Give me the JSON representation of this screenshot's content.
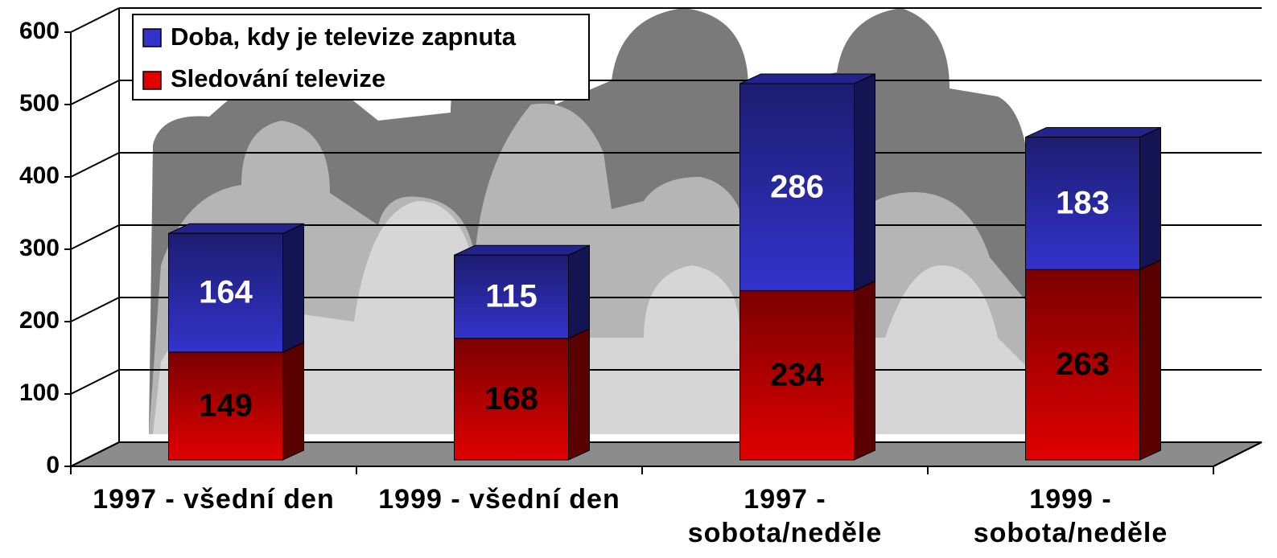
{
  "chart_data": {
    "type": "bar",
    "categories": [
      "1997 - všední den",
      "1999 - všední den",
      "1997 - sobota/neděle",
      "1999 - sobota/neděle"
    ],
    "series": [
      {
        "name": "Doba, kdy je televize zapnuta",
        "color": "#3333cc",
        "values": [
          164,
          115,
          286,
          183
        ]
      },
      {
        "name": "Sledování televize",
        "color": "#e00000",
        "values": [
          149,
          168,
          234,
          263
        ]
      }
    ],
    "stacked": true,
    "ylim": [
      0,
      600
    ],
    "yticks": [
      0,
      100,
      200,
      300,
      400,
      500,
      600
    ],
    "grid": true
  }
}
